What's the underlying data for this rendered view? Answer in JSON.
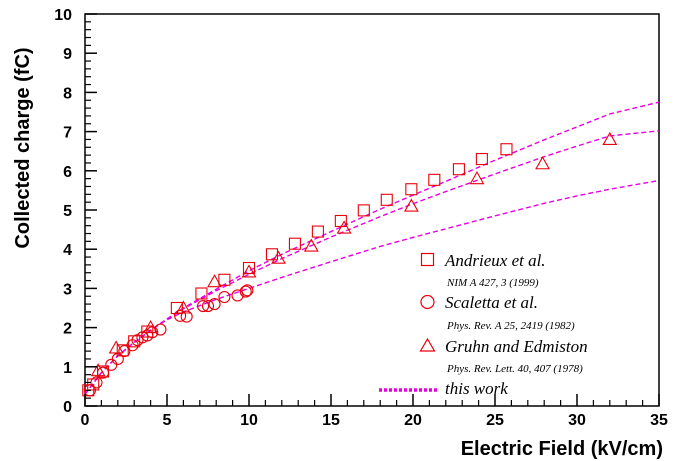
{
  "chart_data": {
    "type": "scatter",
    "xlabel": "Electric Field (kV/cm)",
    "ylabel": "Collected charge (fC)",
    "xlim": [
      0,
      35
    ],
    "ylim": [
      0,
      10
    ],
    "xticks": [
      "0",
      "5",
      "10",
      "15",
      "20",
      "25",
      "30",
      "35"
    ],
    "yticks": [
      "0",
      "1",
      "2",
      "3",
      "4",
      "5",
      "6",
      "7",
      "8",
      "9",
      "10"
    ],
    "grid": false,
    "legend_position": "bottom-right",
    "colors": {
      "markers": "#e8000b",
      "lines": "#e800e0",
      "axes": "#000000"
    },
    "series": [
      {
        "name": "Andrieux et al.",
        "reference": "NIM A 427, 3 (1999)",
        "marker": "square",
        "x": [
          0.2,
          0.5,
          1.1,
          2.3,
          3.0,
          3.8,
          5.6,
          7.1,
          8.5,
          10.0,
          11.4,
          12.8,
          14.2,
          15.6,
          17.0,
          18.4,
          19.9,
          21.3,
          22.8,
          24.2,
          25.7
        ],
        "y": [
          0.4,
          0.55,
          0.88,
          1.42,
          1.65,
          1.9,
          2.5,
          2.87,
          3.22,
          3.52,
          3.87,
          4.14,
          4.45,
          4.72,
          4.99,
          5.26,
          5.53,
          5.77,
          6.04,
          6.3,
          6.55
        ]
      },
      {
        "name": "Scaletta et al.",
        "reference": "Phys. Rev. A 25, 2419 (1982)",
        "marker": "circle",
        "x": [
          0.3,
          0.7,
          1.1,
          1.6,
          2.0,
          2.4,
          2.9,
          3.2,
          3.5,
          3.8,
          4.1,
          4.6,
          5.8,
          6.2,
          7.2,
          7.5,
          7.9,
          8.5,
          9.3,
          9.8,
          9.9
        ],
        "y": [
          0.4,
          0.6,
          0.85,
          1.05,
          1.2,
          1.4,
          1.55,
          1.68,
          1.75,
          1.8,
          1.88,
          1.95,
          2.3,
          2.28,
          2.55,
          2.55,
          2.6,
          2.78,
          2.82,
          2.92,
          2.95
        ]
      },
      {
        "name": "Gruhn and Edmiston",
        "reference": "Phys. Rev. Lett. 40, 407 (1978)",
        "marker": "triangle",
        "x": [
          0.8,
          1.9,
          4.0,
          6.0,
          7.9,
          10.0,
          11.8,
          13.8,
          15.8,
          19.9,
          23.9,
          27.9,
          32.0
        ],
        "y": [
          0.9,
          1.48,
          2.0,
          2.5,
          3.17,
          3.42,
          3.77,
          4.08,
          4.54,
          5.1,
          5.8,
          6.18,
          6.8
        ]
      },
      {
        "name": "this work",
        "type": "dashed-lines",
        "curves": [
          {
            "x": [
              0,
              1,
              2,
              3,
              4,
              5,
              6,
              8,
              10,
              12,
              15,
              18,
              20,
              22,
              25,
              28,
              30,
              32,
              35
            ],
            "y": [
              0.3,
              0.85,
              1.28,
              1.62,
              1.93,
              2.22,
              2.5,
              2.98,
              3.45,
              3.87,
              4.45,
              5.02,
              5.38,
              5.73,
              6.27,
              6.79,
              7.12,
              7.45,
              7.75
            ]
          },
          {
            "x": [
              0,
              1,
              2,
              3,
              4,
              5,
              6,
              8,
              10,
              12,
              15,
              18,
              20,
              22,
              25,
              28,
              30,
              32,
              35
            ],
            "y": [
              0.3,
              0.85,
              1.28,
              1.62,
              1.93,
              2.22,
              2.48,
              2.94,
              3.36,
              3.76,
              4.31,
              4.83,
              5.16,
              5.47,
              5.92,
              6.36,
              6.63,
              6.89,
              7.02
            ]
          },
          {
            "x": [
              0,
              1,
              2,
              3,
              4,
              5,
              6,
              8,
              10,
              12,
              15,
              18,
              20,
              22,
              25,
              28,
              30,
              32,
              35
            ],
            "y": [
              0.3,
              0.85,
              1.28,
              1.62,
              1.93,
              2.2,
              2.4,
              2.72,
              3.0,
              3.28,
              3.68,
              4.07,
              4.3,
              4.52,
              4.85,
              5.17,
              5.36,
              5.53,
              5.75
            ]
          }
        ]
      }
    ]
  }
}
